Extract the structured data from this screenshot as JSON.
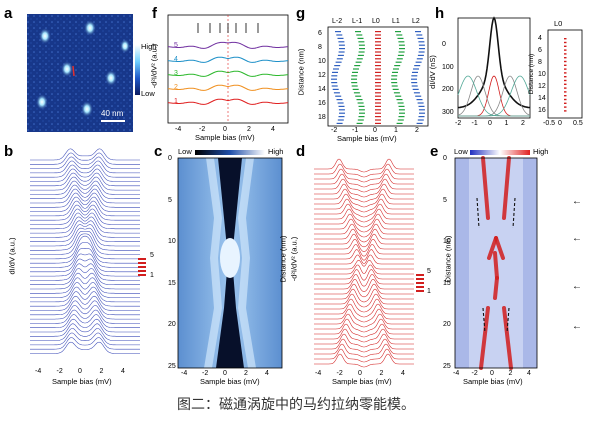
{
  "figure": {
    "caption": "图二：磁通涡旋中的马约拉纳零能模。",
    "panels": {
      "a": {
        "label": "a",
        "scale_bar": "40 nm",
        "colorbar_high": "High",
        "colorbar_low": "Low"
      },
      "b": {
        "label": "b",
        "ylabel": "dI/dV (a.u.)",
        "xlabel": "Sample bias (mV)",
        "xticks": [
          "-4",
          "-2",
          "0",
          "2",
          "4"
        ],
        "marker_top": "5",
        "marker_bottom": "1"
      },
      "c": {
        "label": "c",
        "colorbar_low": "Low",
        "colorbar_high": "High",
        "ylabel": "Distance (nm)",
        "xlabel": "Sample bias (mV)",
        "xticks": [
          "-4",
          "-2",
          "0",
          "2",
          "4"
        ],
        "yticks": [
          "0",
          "5",
          "10",
          "15",
          "20",
          "25"
        ]
      },
      "d": {
        "label": "d",
        "ylabel": "-d²I/dV² (a.u.)",
        "xlabel": "Sample bias (mV)",
        "xticks": [
          "-4",
          "-2",
          "0",
          "2",
          "4"
        ],
        "marker_top": "5",
        "marker_bottom": "1"
      },
      "e": {
        "label": "e",
        "colorbar_low": "Low",
        "colorbar_high": "High",
        "ylabel": "Distance (nm)",
        "xlabel": "Sample bias (mV)",
        "xticks": [
          "-4",
          "-2",
          "0",
          "2",
          "4"
        ],
        "yticks": [
          "0",
          "5",
          "10",
          "15",
          "20",
          "25"
        ]
      },
      "f": {
        "label": "f",
        "ylabel": "-d²I/dV² (a.u.)",
        "xlabel": "Sample bias (mV)",
        "xticks": [
          "-4",
          "-2",
          "0",
          "2",
          "4"
        ],
        "curve_labels": [
          "5",
          "4",
          "3",
          "2",
          "1"
        ]
      },
      "g": {
        "label": "g",
        "ylabel": "Distance (nm)",
        "xlabel": "Sample bias (mV)",
        "xticks": [
          "-2",
          "-1",
          "0",
          "1",
          "2"
        ],
        "yticks": [
          "6",
          "8",
          "10",
          "12",
          "14",
          "16",
          "18"
        ],
        "toplabels": [
          "L-2",
          "L-1",
          "L0",
          "L1",
          "L2"
        ]
      },
      "h": {
        "label": "h",
        "ylabel": "dI/dV (nS)",
        "xticks": [
          "-2",
          "-1",
          "0",
          "1",
          "2"
        ],
        "yticks": [
          "0",
          "100",
          "200",
          "300"
        ],
        "inset_label": "L0",
        "inset_ylabel": "Distance (nm)",
        "inset_xticks": [
          "-0.5",
          "0",
          "0.5"
        ],
        "inset_yticks": [
          "4",
          "6",
          "8",
          "10",
          "12",
          "14",
          "16"
        ]
      }
    },
    "colors": {
      "blue": "#3b4bb8",
      "red": "#d21e1e",
      "dark": "#111111"
    }
  },
  "chart_data": [
    {
      "type": "heatmap",
      "panel": "c",
      "xlabel": "Sample bias (mV)",
      "ylabel": "Distance (nm)",
      "xlim": [
        -5,
        5
      ],
      "ylim": [
        0,
        25
      ]
    },
    {
      "type": "heatmap",
      "panel": "e",
      "xlabel": "Sample bias (mV)",
      "ylabel": "Distance (nm)",
      "xlim": [
        -5,
        5
      ],
      "ylim": [
        0,
        25
      ]
    },
    {
      "type": "line",
      "panel": "f",
      "xlabel": "Sample bias (mV)",
      "xlim": [
        -5,
        5
      ],
      "series": [
        {
          "name": "5"
        },
        {
          "name": "4"
        },
        {
          "name": "3"
        },
        {
          "name": "2"
        },
        {
          "name": "1"
        }
      ]
    },
    {
      "type": "scatter",
      "panel": "g",
      "xlabel": "Sample bias (mV)",
      "ylabel": "Distance (nm)",
      "xlim": [
        -2.5,
        2.5
      ],
      "ylim": [
        5,
        19
      ]
    }
  ]
}
